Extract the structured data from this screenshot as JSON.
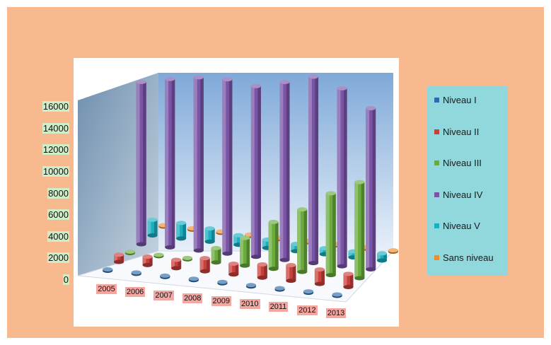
{
  "chart_data": {
    "type": "bar",
    "categories": [
      "2005",
      "2006",
      "2007",
      "2008",
      "2009",
      "2010",
      "2011",
      "2012",
      "2013"
    ],
    "yticks": [
      "0",
      "2000",
      "4000",
      "6000",
      "8000",
      "10000",
      "12000",
      "14000",
      "16000"
    ],
    "ylim": [
      0,
      16000
    ],
    "series": [
      {
        "name": "Niveau I",
        "color": "#2e6ca8",
        "values": [
          100,
          100,
          100,
          100,
          100,
          100,
          100,
          100,
          100
        ]
      },
      {
        "name": "Niveau II",
        "color": "#c9403b",
        "values": [
          600,
          700,
          700,
          1100,
          900,
          1100,
          1300,
          1200,
          1100
        ]
      },
      {
        "name": "Niveau III",
        "color": "#6aab3c",
        "values": [
          100,
          100,
          100,
          1200,
          2300,
          3900,
          5200,
          6800,
          8000
        ]
      },
      {
        "name": "Niveau IV",
        "color": "#7a54a6",
        "values": [
          13500,
          14000,
          14400,
          14500,
          14200,
          14800,
          15500,
          14800,
          13400
        ]
      },
      {
        "name": "Niveau V",
        "color": "#1aaebf",
        "values": [
          1300,
          1300,
          1100,
          800,
          700,
          600,
          500,
          500,
          600
        ]
      },
      {
        "name": "Sans niveau",
        "color": "#f08c2c",
        "values": [
          100,
          100,
          100,
          100,
          100,
          100,
          100,
          100,
          100
        ]
      }
    ]
  }
}
